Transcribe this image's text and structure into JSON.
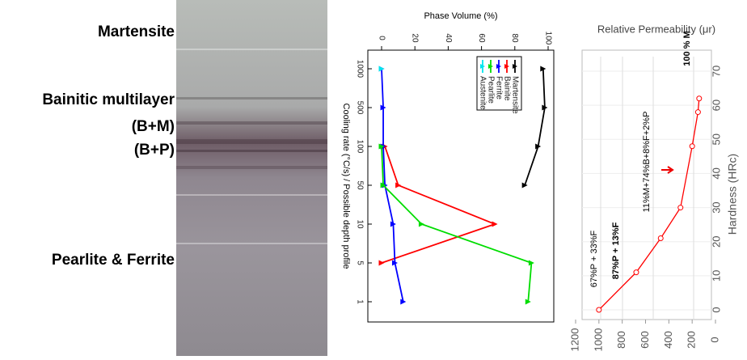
{
  "micrograph_labels": [
    "Martensite",
    "Bainitic multilayer",
    "(B+M)",
    "(B+P)",
    "Pearlite & Ferrite"
  ],
  "chart_data": [
    {
      "type": "line",
      "title": "Phase Volume (%)",
      "y_label": "Cooling rate (°C/s) / Possible depth profile",
      "categories": [
        "1000",
        "500",
        "100",
        "50",
        "10",
        "5",
        "1"
      ],
      "series": [
        {
          "name": "Martensite",
          "color": "#000000",
          "values": [
            97,
            98,
            94,
            86,
            null,
            null,
            null
          ]
        },
        {
          "name": "Bainite",
          "color": "#ff0000",
          "values": [
            null,
            null,
            2,
            10,
            68,
            0,
            null
          ]
        },
        {
          "name": "Ferrite",
          "color": "#0000ff",
          "values": [
            0,
            1,
            1,
            2,
            7,
            8,
            13
          ]
        },
        {
          "name": "Pearlite",
          "color": "#00dd00",
          "values": [
            null,
            null,
            0,
            1,
            24,
            90,
            88
          ]
        },
        {
          "name": "Austenite",
          "color": "#00e5ee",
          "values": [
            0,
            null,
            null,
            null,
            null,
            null,
            null
          ]
        }
      ],
      "ylim": [
        0,
        100
      ],
      "yticks": [
        0,
        20,
        40,
        60,
        80,
        100
      ]
    },
    {
      "type": "line",
      "title": "Relative Permeability (μr)",
      "y_label": "Hardness (HRc)",
      "x": [
        1000,
        680,
        470,
        300,
        200,
        150,
        140
      ],
      "values": [
        0,
        11,
        21,
        30,
        48,
        58,
        62
      ],
      "color": "#ff0000",
      "xlim": [
        1200,
        0
      ],
      "xticks": [
        1200,
        1000,
        800,
        600,
        400,
        200,
        0
      ],
      "ylim": [
        0,
        70
      ],
      "yticks": [
        0,
        10,
        20,
        30,
        40,
        50,
        60,
        70
      ],
      "annotations": [
        "67%P + 33%F",
        "87%P + 13%F",
        "11%M+74%B+8%F+2%P",
        "100 % M"
      ]
    }
  ]
}
